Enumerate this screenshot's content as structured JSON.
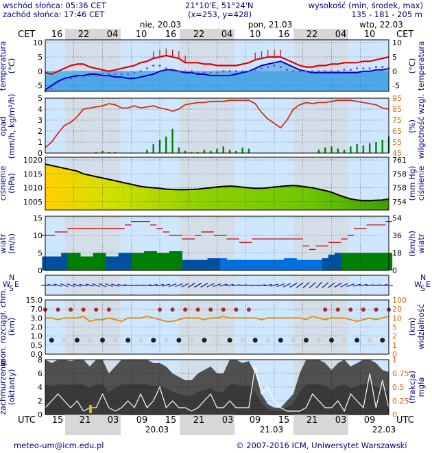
{
  "header": {
    "sunrise": "wschód słońca: 05:36 CET",
    "sunset": "zachód słońca: 17:46 CET",
    "coords": "21°10'E, 51°24'N",
    "grid": "(x=253, y=428)",
    "elevation_label": "wysokość (min, środek, max)",
    "elevation_values": "135 - 181 - 205 m"
  },
  "footer": {
    "email": "meteo-um@icm.edu.pl",
    "copyright": "© 2007-2016 ICM, Uniwersytet Warszawski"
  },
  "top_axis": {
    "tz": "CET",
    "hours": [
      "16",
      "22",
      "04",
      "10",
      "16",
      "22",
      "04",
      "10",
      "16",
      "22",
      "04",
      "10"
    ],
    "dates": [
      "nie, 20.03",
      "pon, 21.03",
      "wto, 22.03"
    ]
  },
  "bottom_axis": {
    "tz": "UTC",
    "hours": [
      "15",
      "21",
      "03",
      "09",
      "15",
      "21",
      "03",
      "09",
      "15",
      "21",
      "03",
      "09"
    ],
    "dates": [
      "20.03",
      "21.03",
      "22.03"
    ]
  },
  "colors": {
    "panel_bg": "#cfe6ff",
    "night": "#d7d7d7",
    "cold_area": "#5ab4f0",
    "temp": "#e00000",
    "dew": "#0000c0",
    "humidity": "#d03010",
    "precip": "#008000",
    "pressure_line": "#000000",
    "wind_gust": "#d00000",
    "wind_fill_dark": "#0050a0",
    "wind_fill_green": "#008000",
    "visibility": "#e09000",
    "clouds_dark": "#505050",
    "fog_line": "#ffffff"
  },
  "chart_data": [
    {
      "type": "line",
      "panel": "temperature",
      "ylabel": "temperatura (°C)",
      "yticks_left": [
        "10",
        "5",
        "0",
        "-5"
      ],
      "yticks_right": [
        "10",
        "5",
        "0",
        "-5"
      ],
      "ylim": [
        -7,
        11
      ],
      "series": [
        {
          "values": [
            -0.5,
            -1,
            0,
            1,
            2,
            2.5,
            2.5,
            1.5,
            1,
            0.5,
            0,
            0.5,
            1,
            1.5,
            2,
            3,
            3.5,
            4.5,
            5,
            5.5,
            5,
            4.5,
            3,
            3,
            3,
            2.5,
            2.5,
            2,
            2,
            2,
            2,
            2.5,
            3,
            4,
            4.5,
            5,
            5,
            5,
            4,
            3,
            2,
            1.5,
            1.5,
            2,
            2,
            2.5,
            2.5,
            3,
            3,
            3,
            3.5,
            3.5,
            4,
            4.5,
            5
          ]
        },
        {
          "values": [
            -6.5,
            -5,
            -3.5,
            -2.5,
            -2,
            -1.5,
            -1.5,
            -1,
            -1,
            -1.5,
            -1.5,
            -2,
            -2,
            -2.5,
            -2.5,
            -2,
            -1.5,
            -1,
            0,
            0.5,
            0.5,
            0,
            -0.5,
            -0.5,
            -1,
            -1,
            -1.5,
            -1.5,
            -1.5,
            -1.5,
            -1,
            -0.5,
            0,
            1,
            2,
            2.5,
            3,
            3.5,
            2.5,
            1.5,
            0.5,
            0,
            -0.5,
            -0.5,
            -0.5,
            -0.5,
            -0.5,
            -0.5,
            -0.5,
            -0.5,
            0,
            0,
            0.5,
            0.5,
            1
          ]
        },
        {
          "values": [
            -7,
            -6,
            -4,
            -3,
            -2.5,
            -2,
            -2,
            -1.5,
            -1.5,
            -1,
            -1,
            -1,
            -1,
            -1,
            -0.5,
            0,
            1,
            2,
            2,
            1,
            0,
            0,
            0,
            0,
            -0.5,
            -0.5,
            -0.5,
            -0.5,
            0,
            0,
            0,
            0,
            0,
            0.5,
            1,
            1.5,
            2,
            1.5,
            0.5,
            0,
            0,
            0,
            0,
            0,
            0,
            0,
            0,
            0.5,
            0.5,
            1,
            1,
            1,
            1.5,
            1.5,
            1
          ]
        }
      ]
    },
    {
      "type": "line",
      "panel": "precipitation-humidity",
      "ylabel": "opad (mm/h, kg/m²/h)",
      "ylabel_right": "(%) wilgotność wzgl.",
      "yticks_left": [
        "5",
        "4",
        "3",
        "2",
        "1",
        "0"
      ],
      "yticks_right": [
        "95",
        "85",
        "75",
        "65",
        "55",
        "45"
      ],
      "ylim": [
        0,
        5
      ],
      "ylim_right": [
        45,
        95
      ],
      "series": [
        {
          "values": [
            50,
            55,
            63,
            70,
            73,
            78,
            85,
            86,
            87,
            88,
            90,
            89,
            86,
            86,
            88,
            86,
            87,
            88,
            86,
            85,
            83,
            85,
            89,
            90,
            91,
            91,
            92,
            92,
            92,
            93,
            93,
            93,
            93,
            90,
            82,
            76,
            72,
            68,
            75,
            85,
            89,
            91,
            90,
            91,
            91,
            92,
            93,
            93,
            93,
            92,
            91,
            90,
            89,
            86,
            85
          ]
        },
        {
          "values": [
            0,
            0,
            0,
            0,
            0,
            0,
            0,
            0,
            0.1,
            0.2,
            0.1,
            0.1,
            0,
            0,
            0,
            0,
            0.3,
            0.8,
            1.2,
            1.5,
            2.2,
            0.5,
            0.2,
            0.1,
            0.1,
            0.3,
            0.2,
            0.4,
            0.6,
            0.3,
            0.2,
            0.5,
            0.4,
            0,
            0,
            0,
            0,
            0,
            0,
            0,
            0,
            0,
            0,
            0.3,
            0.5,
            0.6,
            0.4,
            0.3,
            0.6,
            0.8,
            0.7,
            0.9,
            1.0,
            1.2,
            1.5
          ]
        }
      ]
    },
    {
      "type": "area",
      "panel": "pressure",
      "ylabel": "ciśnienie (hPa)",
      "ylabel_right": "(mm Hg) ciśnienie",
      "yticks_left": [
        "1020",
        "1015",
        "1010",
        "1005"
      ],
      "yticks_right": [
        "761",
        "758",
        "758",
        "754"
      ],
      "ylim": [
        1002,
        1021
      ],
      "series": [
        {
          "values": [
            1018.5,
            1018,
            1017.5,
            1017,
            1016.5,
            1016,
            1015,
            1014.5,
            1014,
            1013.5,
            1013,
            1012.5,
            1012,
            1011.5,
            1011,
            1010.5,
            1010.2,
            1010,
            1009.8,
            1009.5,
            1009.4,
            1009.3,
            1009.3,
            1009.4,
            1009.5,
            1009.8,
            1010,
            1010.3,
            1010.5,
            1010.6,
            1010.5,
            1010.2,
            1010,
            1009.8,
            1009.8,
            1010,
            1010.3,
            1010.5,
            1010.7,
            1010.8,
            1010.6,
            1010.3,
            1010,
            1009.5,
            1009,
            1008.4,
            1007.5,
            1006.7,
            1006,
            1005.6,
            1005.4,
            1005.4,
            1005.5,
            1005.6,
            1006
          ]
        }
      ]
    },
    {
      "type": "area",
      "panel": "wind",
      "ylabel": "wiatr (m/s)",
      "ylabel_right": "(km/h) wiatr",
      "yticks_left": [
        "15",
        "10",
        "5",
        "0"
      ],
      "yticks_right": [
        "54",
        "36",
        "18",
        "0"
      ],
      "ylim": [
        0,
        15.5
      ],
      "series": [
        {
          "values": [
            4,
            4,
            4,
            5,
            5,
            5,
            4,
            4,
            5,
            5,
            4,
            4,
            5,
            5,
            5,
            5,
            5.5,
            5.5,
            5,
            5,
            5.5,
            5.5,
            3,
            3,
            3,
            3,
            3.5,
            3.5,
            3.5,
            3,
            3,
            3,
            3,
            3,
            3,
            3,
            3,
            3,
            3.5,
            3.5,
            3,
            3,
            3,
            3,
            3.5,
            4.5,
            5,
            5,
            5,
            5,
            5,
            5,
            5,
            5,
            5
          ]
        },
        {
          "values": [
            10,
            10,
            11,
            11,
            12,
            12,
            12,
            12,
            12,
            12,
            12,
            12,
            12,
            13,
            14,
            14,
            14,
            13,
            12,
            11,
            10,
            10,
            9,
            9,
            10,
            11,
            11,
            10,
            10,
            9,
            9,
            8,
            8,
            9,
            9,
            9,
            9,
            9,
            9,
            9,
            9,
            7,
            6,
            7,
            7,
            8,
            8,
            9,
            10,
            12,
            12,
            13,
            13,
            13,
            14
          ]
        }
      ]
    },
    {
      "type": "scatter",
      "panel": "wind-direction",
      "legend": [
        "W",
        "N",
        "S",
        "E"
      ],
      "series": [
        {
          "values": [
            270,
            280,
            285,
            290,
            290,
            285,
            280,
            285,
            290,
            295,
            290,
            285,
            280,
            275,
            270,
            270,
            265,
            260,
            260,
            255,
            250,
            250,
            245,
            240,
            240,
            240,
            245,
            250,
            255,
            260,
            265,
            270,
            275,
            270,
            265,
            260,
            255,
            250,
            245,
            240,
            235,
            230,
            230,
            225,
            230,
            235,
            240,
            245,
            250,
            255,
            260,
            265,
            270,
            275,
            280
          ]
        }
      ]
    },
    {
      "type": "scatter",
      "panel": "cape-visibility",
      "ylabel": "pion. rozciągł. chm. (km)",
      "ylabel_right": "(km) widzialność",
      "yticks_left": [
        "15.0",
        "7.0",
        "3.0",
        "2.0",
        "1.0",
        "0.5",
        "0.0"
      ],
      "yticks_right": [
        "100",
        "20",
        "10",
        "5",
        "2",
        "1",
        "0"
      ],
      "series": [
        {
          "values": [
            3,
            3,
            2.5,
            3,
            3,
            3,
            3.5,
            2,
            2.5,
            2.5,
            3,
            2.5,
            2,
            3,
            3,
            3,
            3.5,
            3,
            2.5,
            2,
            2,
            2.5,
            3,
            3,
            3,
            2.5,
            3,
            3,
            3.5,
            3,
            3,
            3,
            3,
            3,
            2.5,
            3,
            3,
            3,
            3,
            3,
            3,
            2.5,
            3.5,
            3,
            2.5,
            3,
            3,
            3,
            2.5,
            2,
            2.5,
            3,
            2.5,
            3,
            3.5
          ]
        }
      ]
    },
    {
      "type": "area",
      "panel": "clouds",
      "ylabel": "zachmurzenie (oktanty)",
      "ylabel_right": "(frakcja) mgła",
      "yticks_left": [
        "8",
        "6",
        "4",
        "2",
        "0"
      ],
      "yticks_right": [
        "1",
        "0.75",
        "0.5",
        "0.25",
        "0"
      ],
      "ylim": [
        0,
        8
      ],
      "series": [
        {
          "values": [
            8,
            7.5,
            8,
            8,
            7.8,
            8,
            8,
            7,
            8,
            8,
            6,
            7,
            8,
            8,
            8,
            8,
            8,
            7.5,
            7.5,
            7,
            6,
            5.5,
            5,
            5,
            6,
            6.5,
            7,
            6,
            6,
            8,
            8,
            7.5,
            7.8,
            6,
            3,
            1.5,
            1,
            1,
            2,
            3,
            6,
            8,
            8,
            8,
            7.5,
            6.5,
            7.5,
            8,
            7,
            7.5,
            8,
            8,
            7.5,
            6.5,
            6.2
          ]
        },
        {
          "values": [
            1,
            2,
            3,
            2,
            1,
            2,
            0.5,
            1,
            1,
            3,
            1,
            0.5,
            1,
            2,
            1,
            3,
            1,
            2,
            4,
            1,
            2,
            1,
            1,
            0.5,
            1,
            2,
            3,
            1,
            1,
            2,
            1,
            1,
            1,
            7,
            3,
            4,
            2,
            1,
            0.5,
            0.5,
            0.5,
            1,
            3,
            2,
            1,
            1,
            2,
            0.5,
            3,
            2,
            1,
            6,
            1,
            5,
            1
          ]
        }
      ]
    }
  ]
}
